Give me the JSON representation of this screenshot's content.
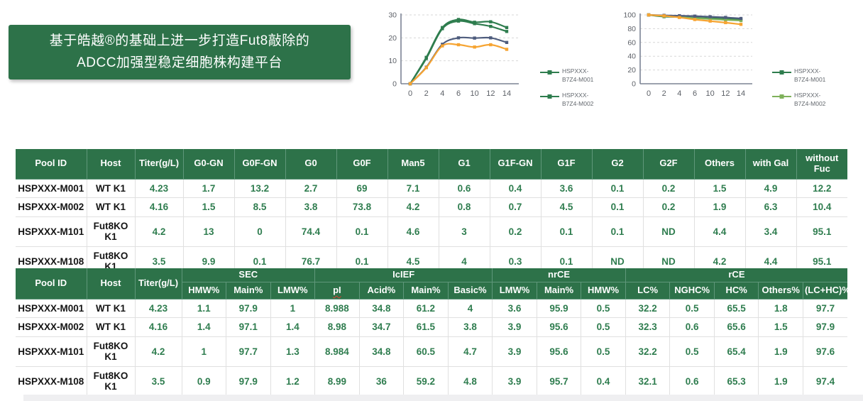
{
  "banner": {
    "line1": "基于皓越®的基础上进一步打造Fut8敲除的",
    "line2": "ADCC加强型稳定细胞株构建平台"
  },
  "colors": {
    "brand_green": "#2D7249",
    "data_green": "#2F7D4F",
    "chart_dark_green": "#2E7D4E",
    "chart_light_green": "#7FB15B",
    "chart_navy": "#4E5C7D",
    "chart_orange": "#F6A432"
  },
  "chart_data": [
    {
      "type": "line",
      "title": "",
      "xlabel": "",
      "ylabel": "",
      "x": [
        0,
        2,
        4,
        6,
        10,
        12,
        14
      ],
      "ylim": [
        0,
        30
      ],
      "yticks": [
        0,
        10,
        20,
        30
      ],
      "grid": "horizontal-dashed",
      "legend_position": "right",
      "series": [
        {
          "name": "HSPXXX-B7Z4-M001",
          "color": "#2E7D4E",
          "values": [
            0,
            11.5,
            24.5,
            28,
            26.8,
            27,
            24.5
          ],
          "in_legend": true
        },
        {
          "name": "HSPXXX-B7Z4-M002",
          "color": "#2E7D4E",
          "values": [
            0,
            11,
            24,
            27.3,
            26.2,
            25,
            22.8
          ],
          "in_legend": true
        },
        {
          "name": "unlabeled-navy",
          "color": "#4E5C7D",
          "values": [
            0,
            7.2,
            17.2,
            20,
            19.9,
            20,
            18
          ],
          "in_legend": false
        },
        {
          "name": "unlabeled-orange",
          "color": "#F6A432",
          "values": [
            0,
            7,
            16.5,
            17,
            16,
            17,
            15
          ],
          "in_legend": false
        }
      ],
      "legend": [
        {
          "lines": "HSPXXX-\nB7Z4-M001",
          "color": "#2E7D4E"
        },
        {
          "lines": "HSPXXX-\nB7Z4-M002",
          "color": "#2E7D4E"
        }
      ]
    },
    {
      "type": "line",
      "title": "",
      "xlabel": "",
      "ylabel": "",
      "x": [
        0,
        2,
        4,
        6,
        10,
        12,
        14
      ],
      "ylim": [
        0,
        100
      ],
      "yticks": [
        0,
        20,
        40,
        60,
        80,
        100
      ],
      "grid": "horizontal-dashed",
      "legend_position": "right",
      "series": [
        {
          "name": "HSPXXX-B7Z4-M001",
          "color": "#2E7D4E",
          "values": [
            100,
            97.5,
            97,
            96,
            95,
            94.2,
            93.3
          ],
          "in_legend": true
        },
        {
          "name": "HSPXXX-B7Z4-M002",
          "color": "#7FB15B",
          "values": [
            100,
            98.3,
            96.8,
            95.3,
            94,
            92.8,
            91.8
          ],
          "in_legend": true
        },
        {
          "name": "unlabeled-navy",
          "color": "#4E5C7D",
          "values": [
            100,
            99.3,
            98.8,
            98.2,
            97.3,
            96.3,
            94.8
          ],
          "in_legend": false
        },
        {
          "name": "unlabeled-orange",
          "color": "#F6A432",
          "values": [
            100,
            98.6,
            96.3,
            93.3,
            91,
            88.8,
            86.3
          ],
          "in_legend": false
        }
      ],
      "legend": [
        {
          "lines": "HSPXXX-\nB7Z4-M001",
          "color": "#2E7D4E"
        },
        {
          "lines": "HSPXXX-\nB7Z4-M002",
          "color": "#7FB15B"
        }
      ]
    }
  ],
  "tables": {
    "glycan": {
      "header_rows": [
        [
          {
            "label": "Pool ID"
          },
          {
            "label": "Host"
          },
          {
            "label": "Titer(g/L)"
          },
          {
            "label": "G0-GN"
          },
          {
            "label": "G0F-GN"
          },
          {
            "label": "G0"
          },
          {
            "label": "G0F"
          },
          {
            "label": "Man5"
          },
          {
            "label": "G1"
          },
          {
            "label": "G1F-GN"
          },
          {
            "label": "G1F"
          },
          {
            "label": "G2"
          },
          {
            "label": "G2F"
          },
          {
            "label": "Others"
          },
          {
            "label": "with Gal"
          },
          {
            "label": "without Fuc"
          }
        ]
      ],
      "rows": [
        [
          "HSPXXX-M001",
          "WT K1",
          "4.23",
          "1.7",
          "13.2",
          "2.7",
          "69",
          "7.1",
          "0.6",
          "0.4",
          "3.6",
          "0.1",
          "0.2",
          "1.5",
          "4.9",
          "12.2"
        ],
        [
          "HSPXXX-M002",
          "WT K1",
          "4.16",
          "1.5",
          "8.5",
          "3.8",
          "73.8",
          "4.2",
          "0.8",
          "0.7",
          "4.5",
          "0.1",
          "0.2",
          "1.9",
          "6.3",
          "10.4"
        ],
        [
          "HSPXXX-M101",
          "Fut8KO K1",
          "4.2",
          "13",
          "0",
          "74.4",
          "0.1",
          "4.6",
          "3",
          "0.2",
          "0.1",
          "0.1",
          "ND",
          "4.4",
          "3.4",
          "95.1"
        ],
        [
          "HSPXXX-M108",
          "Fut8KO K1",
          "3.5",
          "9.9",
          "0.1",
          "76.7",
          "0.1",
          "4.5",
          "4",
          "0.3",
          "0.1",
          "ND",
          "ND",
          "4.2",
          "4.4",
          "95.1"
        ]
      ]
    },
    "quality": {
      "header_rows": [
        [
          {
            "label": "Pool ID",
            "rowspan": 2
          },
          {
            "label": "Host",
            "rowspan": 2
          },
          {
            "label": "Titer(g/L)",
            "rowspan": 2
          },
          {
            "label": "SEC",
            "colspan": 3
          },
          {
            "label": "IcIEF",
            "colspan": 4
          },
          {
            "label": "nrCE",
            "colspan": 3
          },
          {
            "label": "rCE",
            "colspan": 5
          }
        ],
        [
          {
            "label": "HMW%"
          },
          {
            "label": "Main%"
          },
          {
            "label": "LMW%"
          },
          {
            "label": "pI",
            "spell": true
          },
          {
            "label": "Acid%"
          },
          {
            "label": "Main%"
          },
          {
            "label": "Basic%"
          },
          {
            "label": "LMW%"
          },
          {
            "label": "Main%"
          },
          {
            "label": "HMW%"
          },
          {
            "label": "LC%"
          },
          {
            "label": "NGHC%"
          },
          {
            "label": "HC%"
          },
          {
            "label": "Others%"
          },
          {
            "label": "(LC+HC)%"
          }
        ]
      ],
      "rows": [
        [
          "HSPXXX-M001",
          "WT K1",
          "4.23",
          "1.1",
          "97.9",
          "1",
          "8.988",
          "34.8",
          "61.2",
          "4",
          "3.6",
          "95.9",
          "0.5",
          "32.2",
          "0.5",
          "65.5",
          "1.8",
          "97.7"
        ],
        [
          "HSPXXX-M002",
          "WT K1",
          "4.16",
          "1.4",
          "97.1",
          "1.4",
          "8.98",
          "34.7",
          "61.5",
          "3.8",
          "3.9",
          "95.6",
          "0.5",
          "32.3",
          "0.6",
          "65.6",
          "1.5",
          "97.9"
        ],
        [
          "HSPXXX-M101",
          "Fut8KO K1",
          "4.2",
          "1",
          "97.7",
          "1.3",
          "8.984",
          "34.8",
          "60.5",
          "4.7",
          "3.9",
          "95.6",
          "0.5",
          "32.2",
          "0.5",
          "65.4",
          "1.9",
          "97.6"
        ],
        [
          "HSPXXX-M108",
          "Fut8KO K1",
          "3.5",
          "0.9",
          "97.9",
          "1.2",
          "8.99",
          "36",
          "59.2",
          "4.8",
          "3.9",
          "95.7",
          "0.4",
          "32.1",
          "0.6",
          "65.3",
          "1.9",
          "97.4"
        ]
      ]
    }
  }
}
